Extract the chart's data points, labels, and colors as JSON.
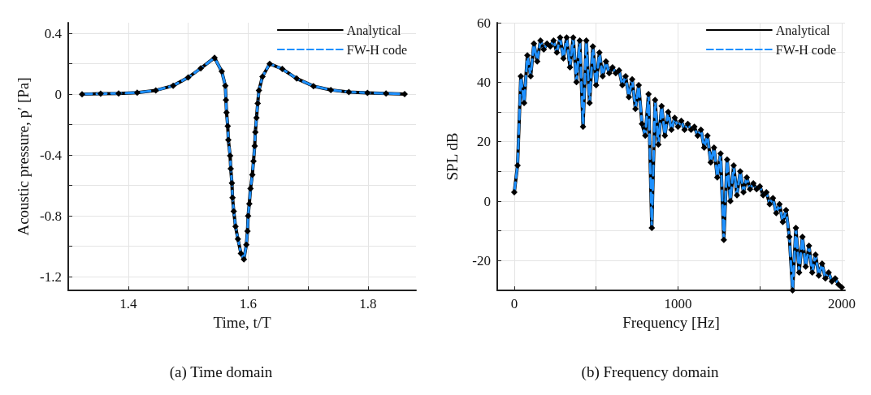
{
  "chart_data": [
    {
      "type": "line",
      "xlabel": "Time, t/T",
      "ylabel": "Acoustic pressure, p′ [Pa]",
      "annotations": [
        "(a) Time domain"
      ],
      "x": [
        1.323,
        1.354,
        1.384,
        1.415,
        1.446,
        1.475,
        1.5,
        1.521,
        1.544,
        1.556,
        1.562,
        1.563,
        1.564,
        1.566,
        1.567,
        1.57,
        1.571,
        1.573,
        1.574,
        1.576,
        1.579,
        1.583,
        1.588,
        1.593,
        1.597,
        1.599,
        1.6,
        1.602,
        1.604,
        1.607,
        1.609,
        1.611,
        1.612,
        1.614,
        1.616,
        1.618,
        1.624,
        1.636,
        1.657,
        1.681,
        1.709,
        1.738,
        1.768,
        1.799,
        1.83,
        1.861
      ],
      "series": [
        {
          "name": "Analytical",
          "color": "#000000",
          "marker": "diamond",
          "line_style": "solid",
          "values": [
            0,
            0.003,
            0.005,
            0.01,
            0.025,
            0.056,
            0.11,
            0.17,
            0.24,
            0.15,
            0.056,
            -0.038,
            -0.12,
            -0.21,
            -0.3,
            -0.405,
            -0.49,
            -0.585,
            -0.68,
            -0.77,
            -0.87,
            -0.953,
            -1.047,
            -1.086,
            -0.99,
            -0.9,
            -0.8,
            -0.72,
            -0.62,
            -0.53,
            -0.44,
            -0.34,
            -0.25,
            -0.155,
            -0.06,
            0.025,
            0.116,
            0.2,
            0.166,
            0.103,
            0.053,
            0.028,
            0.014,
            0.009,
            0.005,
            0.001
          ]
        },
        {
          "name": "FW-H code",
          "color": "#1e90ff",
          "marker": "none",
          "line_style": "dashed",
          "values": [
            0,
            0.003,
            0.005,
            0.01,
            0.025,
            0.056,
            0.11,
            0.17,
            0.24,
            0.15,
            0.056,
            -0.038,
            -0.12,
            -0.21,
            -0.3,
            -0.405,
            -0.49,
            -0.585,
            -0.68,
            -0.77,
            -0.87,
            -0.953,
            -1.047,
            -1.086,
            -0.99,
            -0.9,
            -0.8,
            -0.72,
            -0.62,
            -0.53,
            -0.44,
            -0.34,
            -0.25,
            -0.155,
            -0.06,
            0.025,
            0.116,
            0.2,
            0.166,
            0.103,
            0.053,
            0.028,
            0.014,
            0.009,
            0.005,
            0.001
          ]
        }
      ],
      "xlim": [
        1.3,
        1.88
      ],
      "ylim": [
        -1.29,
        0.47
      ],
      "xticks": [
        1.4,
        {
          "value": 1.5,
          "label": null
        },
        1.6,
        {
          "value": 1.7,
          "label": null
        },
        1.8
      ],
      "yticks": [
        -1.2,
        {
          "value": -1.0,
          "label": null
        },
        -0.8,
        {
          "value": -0.6,
          "label": null
        },
        -0.4,
        {
          "value": -0.2,
          "label": null
        },
        0,
        {
          "value": 0.2,
          "label": null
        },
        0.4
      ],
      "grid": true,
      "legend": "top right"
    },
    {
      "type": "line",
      "xlabel": "Frequency [Hz]",
      "ylabel": "SPL dB",
      "annotations": [
        "(b) Frequency domain"
      ],
      "x": [
        0,
        20,
        40,
        60,
        80,
        100,
        120,
        140,
        160,
        180,
        200,
        220,
        240,
        260,
        280,
        300,
        320,
        340,
        360,
        380,
        400,
        420,
        440,
        460,
        480,
        500,
        520,
        540,
        560,
        580,
        600,
        620,
        640,
        660,
        680,
        700,
        720,
        740,
        760,
        780,
        800,
        820,
        840,
        860,
        880,
        900,
        920,
        940,
        960,
        980,
        1000,
        1020,
        1040,
        1060,
        1080,
        1100,
        1120,
        1140,
        1160,
        1180,
        1200,
        1220,
        1240,
        1260,
        1280,
        1300,
        1320,
        1340,
        1360,
        1380,
        1400,
        1420,
        1440,
        1460,
        1480,
        1500,
        1520,
        1540,
        1560,
        1580,
        1600,
        1620,
        1640,
        1660,
        1680,
        1700,
        1720,
        1740,
        1760,
        1780,
        1800,
        1820,
        1840,
        1860,
        1880,
        1900,
        1920,
        1940,
        1960,
        1980,
        2000
      ],
      "series": [
        {
          "name": "Analytical",
          "color": "#000000",
          "marker": "diamond",
          "line_style": "solid",
          "values": [
            3,
            12,
            42,
            33,
            49,
            42,
            53,
            47,
            54,
            51,
            53,
            52,
            54,
            50,
            55,
            48,
            55,
            45,
            55,
            40,
            54,
            25,
            54,
            33,
            52,
            39,
            50,
            42,
            47,
            43,
            45,
            43,
            44,
            39,
            42,
            35,
            41,
            31,
            39,
            26,
            22,
            36,
            -9,
            34,
            19,
            32,
            22,
            30,
            24,
            28,
            25,
            27,
            24,
            26,
            24,
            25,
            22,
            24,
            18,
            22,
            13,
            18,
            8,
            16,
            -13,
            14,
            0,
            12,
            2,
            10,
            3,
            8,
            4,
            6,
            4,
            5,
            2,
            3,
            -1,
            1,
            -4,
            -1,
            -7,
            -3,
            -12,
            -30,
            -9,
            -24,
            -12,
            -22,
            -15,
            -24,
            -18,
            -25,
            -21,
            -26,
            -24,
            -27,
            -26,
            -28,
            -29
          ]
        },
        {
          "name": "FW-H code",
          "color": "#1e90ff",
          "marker": "none",
          "line_style": "dashed",
          "values": [
            3,
            12,
            42,
            33,
            49,
            42,
            53,
            47,
            54,
            51,
            53,
            52,
            54,
            50,
            55,
            48,
            55,
            45,
            55,
            40,
            54,
            25,
            54,
            33,
            52,
            39,
            50,
            42,
            47,
            43,
            45,
            43,
            44,
            39,
            42,
            35,
            41,
            31,
            39,
            26,
            22,
            36,
            -9,
            34,
            19,
            32,
            22,
            30,
            24,
            28,
            25,
            27,
            24,
            26,
            24,
            25,
            22,
            24,
            18,
            22,
            13,
            18,
            8,
            16,
            -13,
            14,
            0,
            12,
            2,
            10,
            3,
            8,
            4,
            6,
            4,
            5,
            2,
            3,
            -1,
            1,
            -4,
            -1,
            -7,
            -3,
            -12,
            -30,
            -9,
            -24,
            -12,
            -22,
            -15,
            -24,
            -18,
            -25,
            -21,
            -26,
            -24,
            -27,
            -26,
            -28,
            -29
          ]
        }
      ],
      "xlim": [
        -104,
        2020
      ],
      "ylim": [
        -30,
        60
      ],
      "xticks": [
        0,
        {
          "value": 500,
          "label": null
        },
        1000,
        {
          "value": 1500,
          "label": null
        },
        2000
      ],
      "yticks": [
        {
          "value": -30,
          "label": null
        },
        -20,
        {
          "value": -10,
          "label": null
        },
        0,
        {
          "value": 10,
          "label": null
        },
        20,
        {
          "value": 30,
          "label": null
        },
        40,
        {
          "value": 50,
          "label": null
        },
        60
      ],
      "grid": true,
      "legend": "top right"
    }
  ]
}
